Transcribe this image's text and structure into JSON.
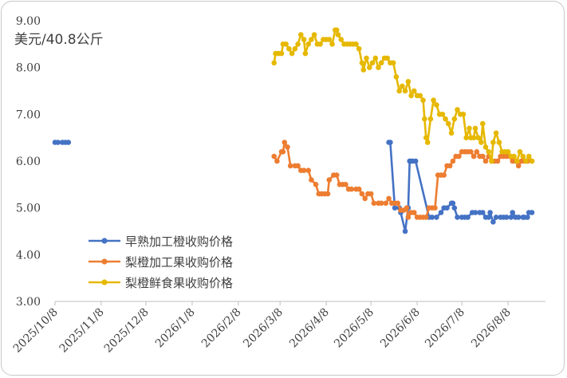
{
  "chart_data": {
    "type": "line",
    "title": "",
    "unit_label": "美元/40.8公斤",
    "ylim": [
      3.0,
      9.0
    ],
    "y_ticks": [
      "3.00",
      "4.00",
      "5.00",
      "6.00",
      "7.00",
      "8.00",
      "9.00"
    ],
    "xlim": [
      "2025-10-08",
      "2026-09-08"
    ],
    "x_ticks": [
      {
        "date": "2025-10-08",
        "label": "2025/10/8"
      },
      {
        "date": "2025-11-08",
        "label": "2025/11/8"
      },
      {
        "date": "2025-12-08",
        "label": "2025/12/8"
      },
      {
        "date": "2026-01-08",
        "label": "2026/1/8"
      },
      {
        "date": "2026-02-08",
        "label": "2026/2/8"
      },
      {
        "date": "2026-03-08",
        "label": "2026/3/8"
      },
      {
        "date": "2026-04-08",
        "label": "2026/4/8"
      },
      {
        "date": "2026-05-08",
        "label": "2026/5/8"
      },
      {
        "date": "2026-06-08",
        "label": "2026/6/8"
      },
      {
        "date": "2026-07-08",
        "label": "2026/7/8"
      },
      {
        "date": "2026-08-08",
        "label": "2026/8/8"
      }
    ],
    "grid": false,
    "legend_position": "bottom-left",
    "series": [
      {
        "name": "早熟加工橙收购价格",
        "color": "#4472C4",
        "points": [
          [
            "2025-10-08",
            6.4
          ],
          [
            "2025-10-10",
            6.4
          ],
          [
            "2025-10-13",
            6.4
          ],
          [
            "2025-10-15",
            6.4
          ],
          [
            "2025-10-17",
            6.4
          ],
          [
            "2026-05-20",
            6.4
          ],
          [
            "2026-05-21",
            6.4
          ],
          [
            "2026-05-24",
            5.0
          ],
          [
            "2026-05-27",
            5.0
          ],
          [
            "2026-05-28",
            4.9
          ],
          [
            "2026-05-31",
            4.5
          ],
          [
            "2026-06-02",
            5.0
          ],
          [
            "2026-06-03",
            6.0
          ],
          [
            "2026-06-04",
            6.0
          ],
          [
            "2026-06-05",
            6.0
          ],
          [
            "2026-06-07",
            6.0
          ],
          [
            "2026-06-16",
            4.8
          ],
          [
            "2026-06-18",
            4.8
          ],
          [
            "2026-06-21",
            4.8
          ],
          [
            "2026-06-24",
            4.9
          ],
          [
            "2026-06-26",
            5.0
          ],
          [
            "2026-06-28",
            5.0
          ],
          [
            "2026-07-01",
            5.1
          ],
          [
            "2026-07-02",
            5.1
          ],
          [
            "2026-07-03",
            5.0
          ],
          [
            "2026-07-05",
            4.8
          ],
          [
            "2026-07-08",
            4.8
          ],
          [
            "2026-07-10",
            4.8
          ],
          [
            "2026-07-12",
            4.8
          ],
          [
            "2026-07-15",
            4.9
          ],
          [
            "2026-07-17",
            4.9
          ],
          [
            "2026-07-20",
            4.9
          ],
          [
            "2026-07-22",
            4.9
          ],
          [
            "2026-07-24",
            4.8
          ],
          [
            "2026-07-26",
            4.8
          ],
          [
            "2026-07-27",
            4.9
          ],
          [
            "2026-07-29",
            4.7
          ],
          [
            "2026-07-31",
            4.8
          ],
          [
            "2026-08-03",
            4.8
          ],
          [
            "2026-08-05",
            4.8
          ],
          [
            "2026-08-07",
            4.8
          ],
          [
            "2026-08-10",
            4.8
          ],
          [
            "2026-08-11",
            4.9
          ],
          [
            "2026-08-13",
            4.8
          ],
          [
            "2026-08-15",
            4.8
          ],
          [
            "2026-08-18",
            4.8
          ],
          [
            "2026-08-19",
            4.8
          ],
          [
            "2026-08-21",
            4.8
          ],
          [
            "2026-08-22",
            4.9
          ],
          [
            "2026-08-24",
            4.9
          ]
        ]
      },
      {
        "name": "梨橙加工果收购价格",
        "color": "#ED7D31",
        "points": [
          [
            "2026-03-04",
            6.1
          ],
          [
            "2026-03-06",
            6.0
          ],
          [
            "2026-03-09",
            6.2
          ],
          [
            "2026-03-10",
            6.2
          ],
          [
            "2026-03-11",
            6.4
          ],
          [
            "2026-03-13",
            6.3
          ],
          [
            "2026-03-15",
            5.9
          ],
          [
            "2026-03-18",
            5.9
          ],
          [
            "2026-03-20",
            5.9
          ],
          [
            "2026-03-22",
            5.8
          ],
          [
            "2026-03-24",
            5.8
          ],
          [
            "2026-03-27",
            5.8
          ],
          [
            "2026-03-29",
            5.6
          ],
          [
            "2026-04-01",
            5.5
          ],
          [
            "2026-04-03",
            5.3
          ],
          [
            "2026-04-05",
            5.3
          ],
          [
            "2026-04-07",
            5.3
          ],
          [
            "2026-04-09",
            5.3
          ],
          [
            "2026-04-10",
            5.6
          ],
          [
            "2026-04-13",
            5.7
          ],
          [
            "2026-04-15",
            5.7
          ],
          [
            "2026-04-17",
            5.5
          ],
          [
            "2026-04-19",
            5.5
          ],
          [
            "2026-04-21",
            5.5
          ],
          [
            "2026-04-23",
            5.4
          ],
          [
            "2026-04-25",
            5.4
          ],
          [
            "2026-04-28",
            5.4
          ],
          [
            "2026-04-30",
            5.4
          ],
          [
            "2026-05-02",
            5.3
          ],
          [
            "2026-05-04",
            5.2
          ],
          [
            "2026-05-06",
            5.3
          ],
          [
            "2026-05-08",
            5.3
          ],
          [
            "2026-05-10",
            5.1
          ],
          [
            "2026-05-13",
            5.1
          ],
          [
            "2026-05-15",
            5.1
          ],
          [
            "2026-05-18",
            5.1
          ],
          [
            "2026-05-20",
            5.2
          ],
          [
            "2026-05-22",
            5.1
          ],
          [
            "2026-05-24",
            5.1
          ],
          [
            "2026-05-26",
            5.1
          ],
          [
            "2026-05-28",
            4.95
          ],
          [
            "2026-05-30",
            4.95
          ],
          [
            "2026-06-01",
            5.0
          ],
          [
            "2026-06-02",
            4.8
          ],
          [
            "2026-06-04",
            4.9
          ],
          [
            "2026-06-06",
            4.9
          ],
          [
            "2026-06-08",
            4.8
          ],
          [
            "2026-06-10",
            4.8
          ],
          [
            "2026-06-12",
            4.8
          ],
          [
            "2026-06-14",
            4.8
          ],
          [
            "2026-06-16",
            5.0
          ],
          [
            "2026-06-18",
            5.0
          ],
          [
            "2026-06-20",
            5.0
          ],
          [
            "2026-06-22",
            5.7
          ],
          [
            "2026-06-24",
            5.7
          ],
          [
            "2026-06-26",
            5.7
          ],
          [
            "2026-06-28",
            5.9
          ],
          [
            "2026-06-30",
            5.9
          ],
          [
            "2026-07-02",
            6.0
          ],
          [
            "2026-07-04",
            6.1
          ],
          [
            "2026-07-06",
            6.1
          ],
          [
            "2026-07-08",
            6.2
          ],
          [
            "2026-07-10",
            6.2
          ],
          [
            "2026-07-12",
            6.2
          ],
          [
            "2026-07-14",
            6.2
          ],
          [
            "2026-07-16",
            6.1
          ],
          [
            "2026-07-18",
            6.2
          ],
          [
            "2026-07-20",
            6.1
          ],
          [
            "2026-07-22",
            6.1
          ],
          [
            "2026-07-24",
            6.0
          ],
          [
            "2026-07-26",
            6.1
          ],
          [
            "2026-07-28",
            6.0
          ],
          [
            "2026-07-30",
            6.0
          ],
          [
            "2026-08-01",
            6.0
          ],
          [
            "2026-08-03",
            6.1
          ],
          [
            "2026-08-05",
            6.1
          ],
          [
            "2026-08-07",
            6.1
          ],
          [
            "2026-08-09",
            6.1
          ],
          [
            "2026-08-11",
            6.0
          ],
          [
            "2026-08-13",
            6.0
          ],
          [
            "2026-08-15",
            5.9
          ],
          [
            "2026-08-17",
            6.0
          ],
          [
            "2026-08-19",
            6.0
          ],
          [
            "2026-08-21",
            6.0
          ],
          [
            "2026-08-24",
            6.0
          ]
        ]
      },
      {
        "name": "梨橙鲜食果收购价格",
        "color": "#E6B800",
        "points": [
          [
            "2026-03-04",
            8.1
          ],
          [
            "2026-03-05",
            8.3
          ],
          [
            "2026-03-07",
            8.3
          ],
          [
            "2026-03-09",
            8.3
          ],
          [
            "2026-03-10",
            8.5
          ],
          [
            "2026-03-12",
            8.5
          ],
          [
            "2026-03-14",
            8.4
          ],
          [
            "2026-03-16",
            8.3
          ],
          [
            "2026-03-18",
            8.4
          ],
          [
            "2026-03-20",
            8.5
          ],
          [
            "2026-03-22",
            8.7
          ],
          [
            "2026-03-24",
            8.6
          ],
          [
            "2026-03-25",
            8.3
          ],
          [
            "2026-03-27",
            8.5
          ],
          [
            "2026-03-29",
            8.6
          ],
          [
            "2026-03-31",
            8.7
          ],
          [
            "2026-04-02",
            8.5
          ],
          [
            "2026-04-04",
            8.5
          ],
          [
            "2026-04-06",
            8.6
          ],
          [
            "2026-04-08",
            8.6
          ],
          [
            "2026-04-10",
            8.6
          ],
          [
            "2026-04-12",
            8.5
          ],
          [
            "2026-04-14",
            8.8
          ],
          [
            "2026-04-15",
            8.8
          ],
          [
            "2026-04-16",
            8.7
          ],
          [
            "2026-04-18",
            8.6
          ],
          [
            "2026-04-20",
            8.5
          ],
          [
            "2026-04-22",
            8.5
          ],
          [
            "2026-04-24",
            8.5
          ],
          [
            "2026-04-26",
            8.5
          ],
          [
            "2026-04-28",
            8.5
          ],
          [
            "2026-04-30",
            8.4
          ],
          [
            "2026-05-02",
            8.1
          ],
          [
            "2026-05-03",
            7.95
          ],
          [
            "2026-05-05",
            8.2
          ],
          [
            "2026-05-07",
            8.0
          ],
          [
            "2026-05-09",
            8.1
          ],
          [
            "2026-05-11",
            8.2
          ],
          [
            "2026-05-13",
            8.0
          ],
          [
            "2026-05-15",
            8.1
          ],
          [
            "2026-05-17",
            8.2
          ],
          [
            "2026-05-19",
            8.2
          ],
          [
            "2026-05-21",
            8.1
          ],
          [
            "2026-05-23",
            8.1
          ],
          [
            "2026-05-25",
            7.8
          ],
          [
            "2026-05-27",
            7.5
          ],
          [
            "2026-05-29",
            7.6
          ],
          [
            "2026-05-31",
            7.5
          ],
          [
            "2026-06-02",
            7.7
          ],
          [
            "2026-06-04",
            7.4
          ],
          [
            "2026-06-06",
            7.5
          ],
          [
            "2026-06-08",
            7.4
          ],
          [
            "2026-06-10",
            7.4
          ],
          [
            "2026-06-12",
            7.3
          ],
          [
            "2026-06-13",
            6.9
          ],
          [
            "2026-06-14",
            6.5
          ],
          [
            "2026-06-15",
            6.4
          ],
          [
            "2026-06-17",
            6.9
          ],
          [
            "2026-06-19",
            7.3
          ],
          [
            "2026-06-21",
            7.2
          ],
          [
            "2026-06-23",
            7.0
          ],
          [
            "2026-06-25",
            7.0
          ],
          [
            "2026-06-27",
            6.9
          ],
          [
            "2026-06-29",
            6.8
          ],
          [
            "2026-07-01",
            6.6
          ],
          [
            "2026-07-03",
            6.9
          ],
          [
            "2026-07-05",
            7.1
          ],
          [
            "2026-07-07",
            7.0
          ],
          [
            "2026-07-09",
            7.0
          ],
          [
            "2026-07-11",
            6.5
          ],
          [
            "2026-07-13",
            6.7
          ],
          [
            "2026-07-14",
            6.5
          ],
          [
            "2026-07-16",
            6.5
          ],
          [
            "2026-07-17",
            6.7
          ],
          [
            "2026-07-19",
            6.5
          ],
          [
            "2026-07-21",
            6.4
          ],
          [
            "2026-07-22",
            6.8
          ],
          [
            "2026-07-24",
            6.3
          ],
          [
            "2026-07-26",
            6.2
          ],
          [
            "2026-07-28",
            6.0
          ],
          [
            "2026-07-29",
            6.4
          ],
          [
            "2026-07-31",
            6.6
          ],
          [
            "2026-08-02",
            6.4
          ],
          [
            "2026-08-04",
            6.2
          ],
          [
            "2026-08-06",
            6.2
          ],
          [
            "2026-08-08",
            6.2
          ],
          [
            "2026-08-10",
            6.1
          ],
          [
            "2026-08-12",
            6.1
          ],
          [
            "2026-08-14",
            6.0
          ],
          [
            "2026-08-16",
            6.2
          ],
          [
            "2026-08-18",
            6.1
          ],
          [
            "2026-08-20",
            6.0
          ],
          [
            "2026-08-22",
            6.1
          ],
          [
            "2026-08-24",
            6.0
          ]
        ]
      }
    ]
  }
}
